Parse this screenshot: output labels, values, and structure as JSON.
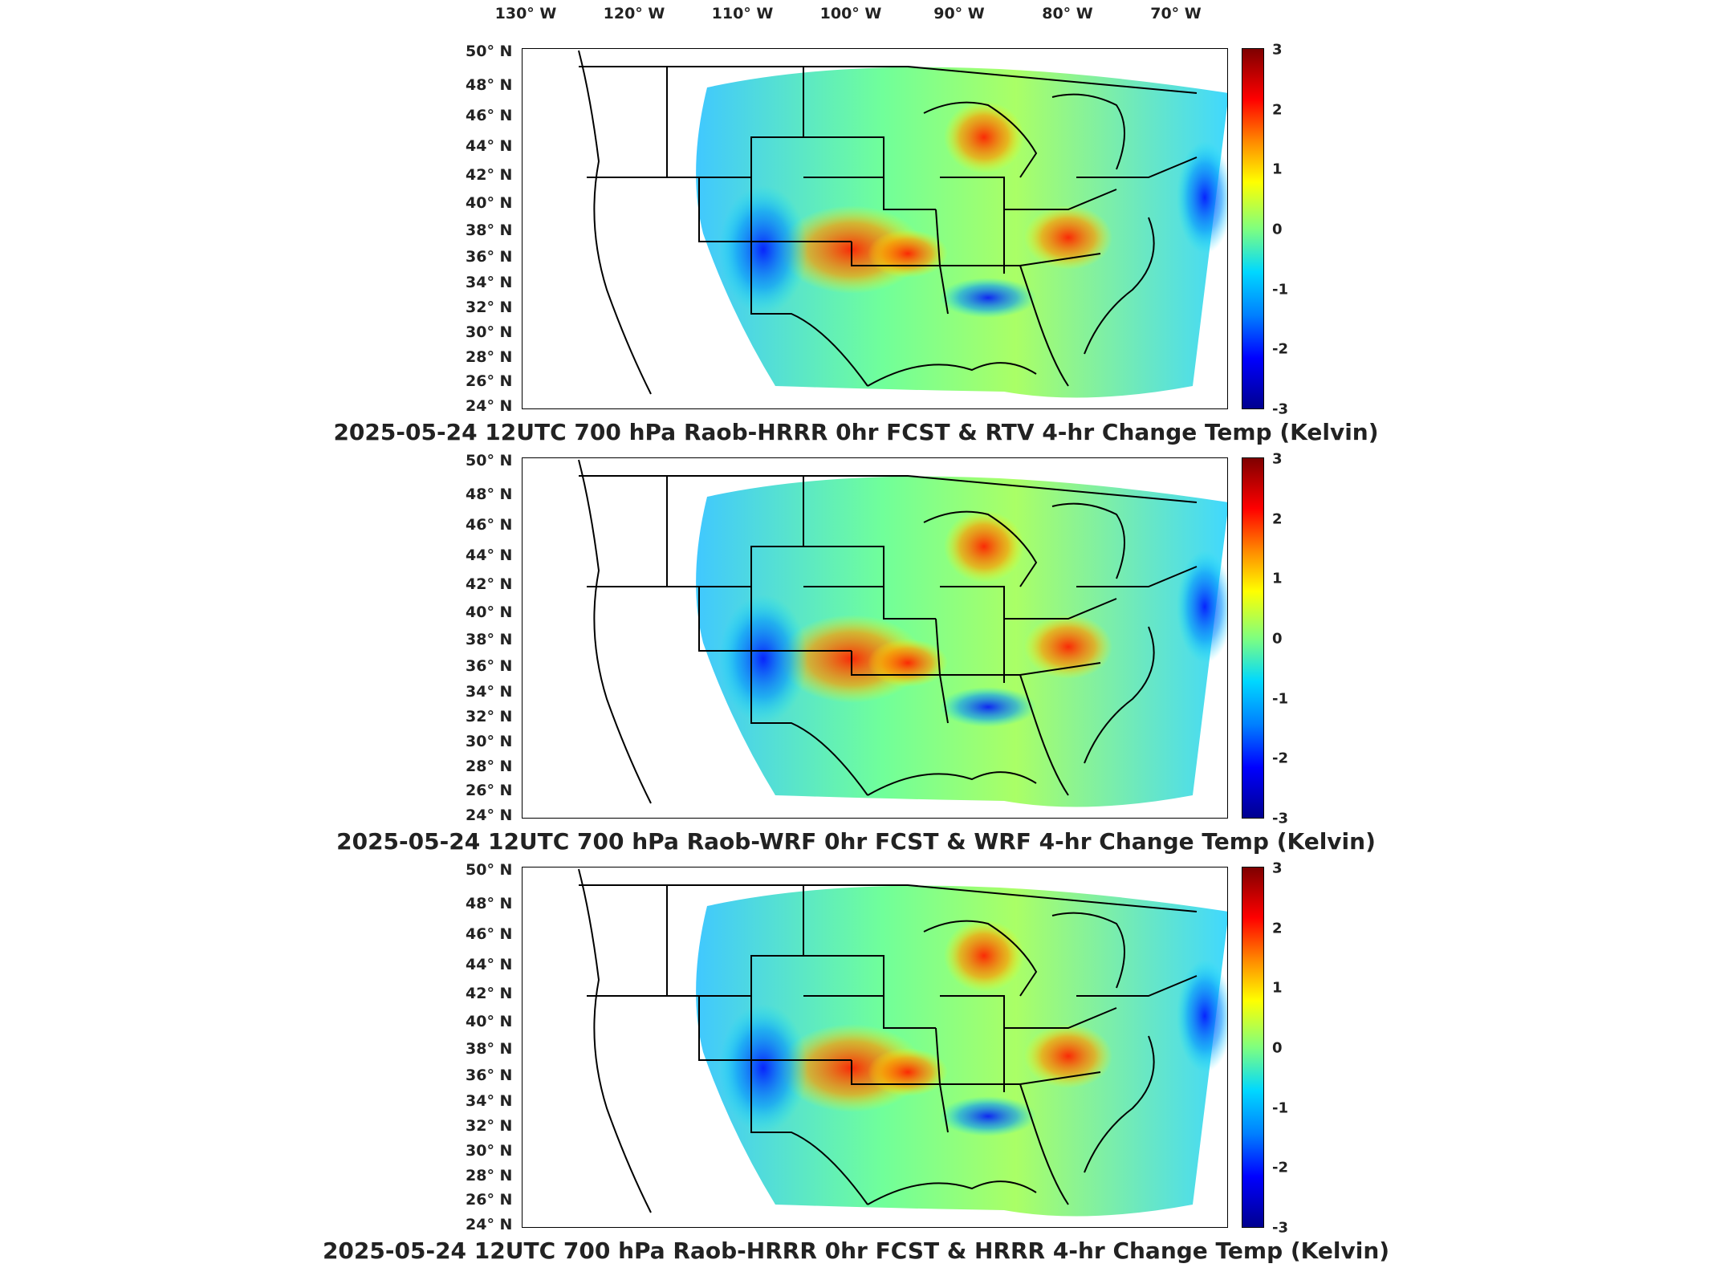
{
  "lon_labels": [
    "130° W",
    "120° W",
    "110° W",
    "100° W",
    "90° W",
    "80° W",
    "70° W"
  ],
  "lat_labels": [
    "50° N",
    "48° N",
    "46° N",
    "44° N",
    "42° N",
    "40° N",
    "38° N",
    "36° N",
    "34° N",
    "32° N",
    "30° N",
    "28° N",
    "26° N",
    "24° N"
  ],
  "colorbar_ticks": [
    "3",
    "2",
    "1",
    "0",
    "-1",
    "-2",
    "-3"
  ],
  "colorbar": {
    "min": -3,
    "max": 3,
    "colormap": "jet"
  },
  "panels": [
    {
      "title": "2025-05-24 12UTC 700 hPa Raob-HRRR 0hr FCST & RTV 4-hr Change Temp (Kelvin)"
    },
    {
      "title": "2025-05-24 12UTC 700 hPa Raob-WRF 0hr FCST & WRF 4-hr Change Temp (Kelvin)"
    },
    {
      "title": "2025-05-24 12UTC 700 hPa Raob-HRRR 0hr FCST & HRRR 4-hr Change Temp (Kelvin)"
    }
  ],
  "colors": {
    "background_field": "#7fffd4",
    "border": "#000000"
  }
}
